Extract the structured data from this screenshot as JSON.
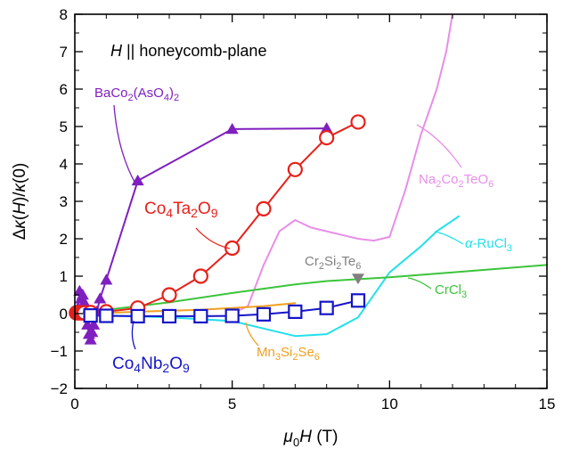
{
  "chart_data": {
    "type": "line",
    "title": "",
    "inset_text": "H || honeycomb-plane",
    "xlabel": "μ0H (T)",
    "ylabel": "Δκ(H)/κ(0)",
    "xlim": [
      0,
      15
    ],
    "ylim": [
      -2,
      8
    ],
    "xticks": [
      0,
      5,
      10,
      15
    ],
    "yticks": [
      -2,
      -1,
      0,
      1,
      2,
      3,
      4,
      5,
      6,
      7,
      8
    ],
    "grid": false,
    "legend": "none (direct labels)",
    "colors": {
      "BaCo2(AsO4)2": "#7f1fbf",
      "Co4Ta2O9": "#e8201a",
      "Co4Nb2O9": "#1414c8",
      "Na2Co2TeO6": "#e88ee8",
      "α-RuCl3": "#22e0ea",
      "CrCl3": "#3cc43c",
      "Mn3Si2Se6": "#f0a020",
      "Cr2Si2Te6": "#808080"
    },
    "series": [
      {
        "name": "BaCo2(AsO4)2",
        "marker": "filled-triangle",
        "points": [
          [
            0.05,
            0.05
          ],
          [
            0.1,
            0.15
          ],
          [
            0.15,
            0.6
          ],
          [
            0.2,
            0.4
          ],
          [
            0.25,
            0.5
          ],
          [
            0.3,
            0.3
          ],
          [
            0.35,
            0.1
          ],
          [
            0.4,
            -0.3
          ],
          [
            0.45,
            -0.55
          ],
          [
            0.5,
            -0.7
          ],
          [
            0.55,
            -0.5
          ],
          [
            0.6,
            -0.3
          ],
          [
            0.7,
            0.05
          ],
          [
            0.8,
            0.4
          ],
          [
            1.0,
            0.9
          ],
          [
            2.0,
            3.55
          ],
          [
            5.0,
            4.93
          ],
          [
            8.0,
            4.95
          ]
        ]
      },
      {
        "name": "Co4Ta2O9",
        "marker": "open-circle",
        "points": [
          [
            0.05,
            0.02
          ],
          [
            0.1,
            0.02
          ],
          [
            0.15,
            0.02
          ],
          [
            0.2,
            0.02
          ],
          [
            0.25,
            0.02
          ],
          [
            0.3,
            0.02
          ],
          [
            0.5,
            0.03
          ],
          [
            1.0,
            0.05
          ],
          [
            2.0,
            0.15
          ],
          [
            3.0,
            0.5
          ],
          [
            4.0,
            1.0
          ],
          [
            5.0,
            1.75
          ],
          [
            6.0,
            2.8
          ],
          [
            7.0,
            3.85
          ],
          [
            8.0,
            4.7
          ],
          [
            9.0,
            5.12
          ]
        ]
      },
      {
        "name": "Co4Nb2O9",
        "marker": "open-square",
        "points": [
          [
            0.5,
            -0.05
          ],
          [
            1,
            -0.06
          ],
          [
            2,
            -0.07
          ],
          [
            3,
            -0.07
          ],
          [
            4,
            -0.07
          ],
          [
            5,
            -0.06
          ],
          [
            6,
            -0.02
          ],
          [
            7,
            0.05
          ],
          [
            8,
            0.15
          ],
          [
            9,
            0.35
          ]
        ]
      },
      {
        "name": "Na2Co2TeO6",
        "marker": "none",
        "points": [
          [
            5.0,
            0.0
          ],
          [
            5.5,
            0.2
          ],
          [
            6.0,
            1.3
          ],
          [
            6.5,
            2.2
          ],
          [
            7.0,
            2.5
          ],
          [
            7.5,
            2.3
          ],
          [
            8.0,
            2.2
          ],
          [
            8.5,
            2.1
          ],
          [
            9.0,
            2.0
          ],
          [
            9.5,
            1.95
          ],
          [
            10.0,
            2.05
          ],
          [
            10.5,
            3.3
          ],
          [
            11.0,
            4.8
          ],
          [
            11.5,
            6.0
          ],
          [
            11.8,
            7.0
          ],
          [
            12.0,
            8.0
          ]
        ]
      },
      {
        "name": "α-RuCl3",
        "marker": "none",
        "points": [
          [
            1.0,
            -0.05
          ],
          [
            3.0,
            -0.1
          ],
          [
            5.0,
            -0.2
          ],
          [
            6.0,
            -0.4
          ],
          [
            7.0,
            -0.6
          ],
          [
            8.0,
            -0.55
          ],
          [
            9.0,
            -0.1
          ],
          [
            10.0,
            1.1
          ],
          [
            11.0,
            1.8
          ],
          [
            11.5,
            2.2
          ],
          [
            12.2,
            2.6
          ]
        ]
      },
      {
        "name": "CrCl3",
        "marker": "none",
        "points": [
          [
            0.0,
            0.0
          ],
          [
            1.0,
            0.1
          ],
          [
            3.0,
            0.3
          ],
          [
            5.0,
            0.55
          ],
          [
            7.0,
            0.78
          ],
          [
            8.0,
            0.87
          ],
          [
            10.0,
            0.97
          ],
          [
            12.0,
            1.1
          ],
          [
            15.0,
            1.3
          ]
        ]
      },
      {
        "name": "Mn3Si2Se6",
        "marker": "none",
        "points": [
          [
            0.5,
            0.0
          ],
          [
            2.0,
            0.05
          ],
          [
            4.0,
            0.1
          ],
          [
            6.0,
            0.2
          ],
          [
            7.0,
            0.28
          ]
        ]
      },
      {
        "name": "Cr2Si2Te6",
        "marker": "filled-triangle-down",
        "points": [
          [
            9.0,
            0.95
          ]
        ]
      }
    ],
    "annotations": [
      {
        "series": "BaCo2(AsO4)2",
        "label_parts": [
          [
            "BaCo",
            ""
          ],
          [
            "2",
            "sub"
          ],
          [
            "(AsO",
            ""
          ],
          [
            "4",
            "sub"
          ],
          [
            ")",
            ""
          ],
          [
            "2",
            "sub"
          ]
        ]
      },
      {
        "series": "Co4Ta2O9",
        "label_parts": [
          [
            "Co",
            ""
          ],
          [
            "4",
            "sub"
          ],
          [
            "Ta",
            ""
          ],
          [
            "2",
            "sub"
          ],
          [
            "O",
            ""
          ],
          [
            "9",
            "sub"
          ]
        ]
      },
      {
        "series": "Co4Nb2O9",
        "label_parts": [
          [
            "Co",
            ""
          ],
          [
            "4",
            "sub"
          ],
          [
            "Nb",
            ""
          ],
          [
            "2",
            "sub"
          ],
          [
            "O",
            ""
          ],
          [
            "9",
            "sub"
          ]
        ]
      },
      {
        "series": "Na2Co2TeO6",
        "label_parts": [
          [
            "Na",
            ""
          ],
          [
            "2",
            "sub"
          ],
          [
            "Co",
            ""
          ],
          [
            "2",
            "sub"
          ],
          [
            "TeO",
            ""
          ],
          [
            "6",
            "sub"
          ]
        ]
      },
      {
        "series": "α-RuCl3",
        "label_parts": [
          [
            "α",
            "italic"
          ],
          [
            "-RuCl",
            ""
          ],
          [
            "3",
            "sub"
          ]
        ]
      },
      {
        "series": "CrCl3",
        "label_parts": [
          [
            "CrCl",
            ""
          ],
          [
            "3",
            "sub"
          ]
        ]
      },
      {
        "series": "Mn3Si2Se6",
        "label_parts": [
          [
            "Mn",
            ""
          ],
          [
            "3",
            "sub"
          ],
          [
            "Si",
            ""
          ],
          [
            "2",
            "sub"
          ],
          [
            "Se",
            ""
          ],
          [
            "6",
            "sub"
          ]
        ]
      },
      {
        "series": "Cr2Si2Te6",
        "label_parts": [
          [
            "Cr",
            ""
          ],
          [
            "2",
            "sub"
          ],
          [
            "Si",
            ""
          ],
          [
            "2",
            "sub"
          ],
          [
            "Te",
            ""
          ],
          [
            "6",
            "sub"
          ]
        ]
      }
    ]
  }
}
